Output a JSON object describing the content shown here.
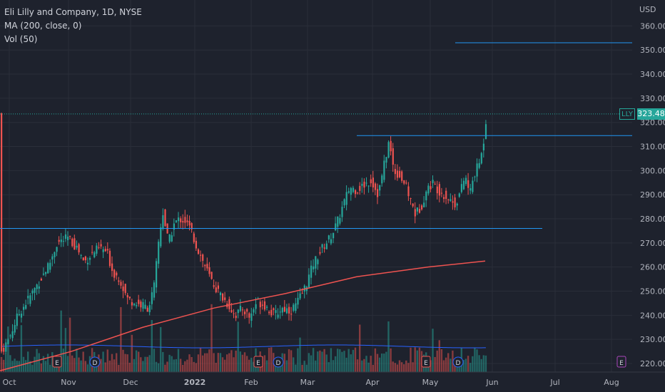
{
  "legend": {
    "title": "Eli Lilly and Company, 1D, NYSE",
    "ma": "MA (200, close, 0)",
    "vol": "Vol (50)"
  },
  "price_axis": {
    "currency": "USD",
    "ticker": "LLY",
    "last_price": "323.48"
  },
  "colors": {
    "background": "#1e222d",
    "up": "#26a69a",
    "down": "#ef5350",
    "ma_line": "#ef5350",
    "vol_ma_line": "#2962ff",
    "level_lines": "#2196f3",
    "grid": "#2a2e39"
  },
  "chart_data": {
    "type": "candlestick",
    "symbol": "LLY",
    "y_ticks": [
      "220.00",
      "230.00",
      "240.00",
      "250.00",
      "260.00",
      "270.00",
      "280.00",
      "290.00",
      "300.00",
      "310.00",
      "320.00",
      "330.00",
      "340.00",
      "350.00",
      "360.00"
    ],
    "ylim": [
      217,
      364
    ],
    "x_ticks": [
      "Oct",
      "Nov",
      "Dec",
      "2022",
      "Feb",
      "Mar",
      "Apr",
      "May",
      "Jun",
      "Jul",
      "Aug"
    ],
    "horizontal_levels": [
      276,
      314.5,
      353
    ],
    "ma200_approx": [
      [
        0,
        217
      ],
      [
        100,
        225
      ],
      [
        200,
        235
      ],
      [
        300,
        243
      ],
      [
        400,
        249
      ],
      [
        500,
        256
      ],
      [
        600,
        260
      ],
      [
        680,
        262.5
      ]
    ],
    "key_closes": [
      [
        "Oct",
        224
      ],
      [
        "mid Oct",
        240
      ],
      [
        "Nov",
        266
      ],
      [
        "mid Nov",
        264
      ],
      [
        "Dec",
        244
      ],
      [
        "mid Dec",
        282
      ],
      [
        "2022",
        279
      ],
      [
        "mid Jan",
        250
      ],
      [
        "Feb",
        240
      ],
      [
        "mid Feb",
        244
      ],
      [
        "Mar",
        247
      ],
      [
        "mid Mar",
        272
      ],
      [
        "Apr",
        298
      ],
      [
        "early Apr",
        312
      ],
      [
        "mid Apr",
        293
      ],
      [
        "late Apr",
        282
      ],
      [
        "May",
        290
      ],
      [
        "mid May",
        287
      ],
      [
        "late May",
        308
      ],
      [
        "last",
        323.48
      ]
    ],
    "event_markers": [
      {
        "label": "E",
        "date": "late Oct"
      },
      {
        "label": "D",
        "date": "mid Nov"
      },
      {
        "label": "E",
        "date": "early Feb"
      },
      {
        "label": "D",
        "date": "Feb"
      },
      {
        "label": "E",
        "date": "early May"
      },
      {
        "label": "D",
        "date": "mid May"
      },
      {
        "label": "E",
        "date": "Aug"
      }
    ],
    "volume_ma": "flat near average",
    "grid": true
  }
}
